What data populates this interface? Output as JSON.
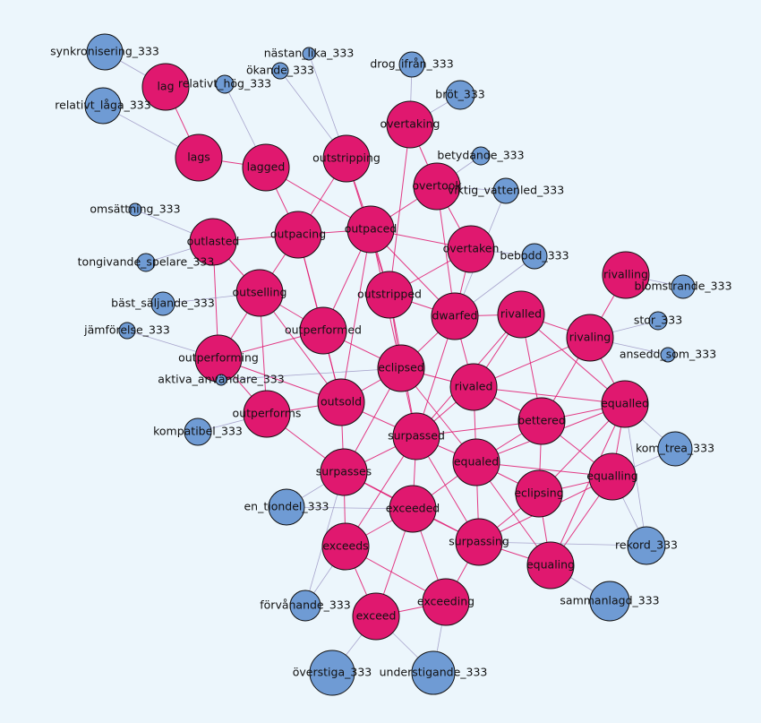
{
  "nodes": [
    {
      "label": "lag",
      "color": "#e0186f"
    },
    {
      "label": "lags",
      "color": "#e0186f"
    },
    {
      "label": "lagged",
      "color": "#e0186f"
    },
    {
      "label": "outstripping",
      "color": "#e0186f"
    },
    {
      "label": "overtaking",
      "color": "#e0186f"
    },
    {
      "label": "overtook",
      "color": "#e0186f"
    },
    {
      "label": "outpacing",
      "color": "#e0186f"
    },
    {
      "label": "outpaced",
      "color": "#e0186f"
    },
    {
      "label": "outlasted",
      "color": "#e0186f"
    },
    {
      "label": "overtaken",
      "color": "#e0186f"
    },
    {
      "label": "rivalling",
      "color": "#e0186f"
    },
    {
      "label": "outselling",
      "color": "#e0186f"
    },
    {
      "label": "outstripped",
      "color": "#e0186f"
    },
    {
      "label": "dwarfed",
      "color": "#e0186f"
    },
    {
      "label": "rivalled",
      "color": "#e0186f"
    },
    {
      "label": "rivaling",
      "color": "#e0186f"
    },
    {
      "label": "outperformed",
      "color": "#e0186f"
    },
    {
      "label": "outperforming",
      "color": "#e0186f"
    },
    {
      "label": "eclipsed",
      "color": "#e0186f"
    },
    {
      "label": "rivaled",
      "color": "#e0186f"
    },
    {
      "label": "outsold",
      "color": "#e0186f"
    },
    {
      "label": "equalled",
      "color": "#e0186f"
    },
    {
      "label": "outperforms",
      "color": "#e0186f"
    },
    {
      "label": "bettered",
      "color": "#e0186f"
    },
    {
      "label": "surpassed",
      "color": "#e0186f"
    },
    {
      "label": "equaled",
      "color": "#e0186f"
    },
    {
      "label": "surpasses",
      "color": "#e0186f"
    },
    {
      "label": "equalling",
      "color": "#e0186f"
    },
    {
      "label": "eclipsing",
      "color": "#e0186f"
    },
    {
      "label": "exceeded",
      "color": "#e0186f"
    },
    {
      "label": "exceeds",
      "color": "#e0186f"
    },
    {
      "label": "surpassing",
      "color": "#e0186f"
    },
    {
      "label": "equaling",
      "color": "#e0186f"
    },
    {
      "label": "exceed",
      "color": "#e0186f"
    },
    {
      "label": "exceeding",
      "color": "#e0186f"
    },
    {
      "label": "synkronisering_333",
      "color": "#6f9bd4"
    },
    {
      "label": "relativt_låga_333",
      "color": "#6f9bd4"
    },
    {
      "label": "relativt_hög_333",
      "color": "#6f9bd4"
    },
    {
      "label": "nästan_lika_333",
      "color": "#6f9bd4"
    },
    {
      "label": "ökande_333",
      "color": "#6f9bd4"
    },
    {
      "label": "drog_ifrån_333",
      "color": "#6f9bd4"
    },
    {
      "label": "bröt_333",
      "color": "#6f9bd4"
    },
    {
      "label": "betydande_333",
      "color": "#6f9bd4"
    },
    {
      "label": "viktig_vattenled_333",
      "color": "#6f9bd4"
    },
    {
      "label": "omsättning_333",
      "color": "#6f9bd4"
    },
    {
      "label": "tongivande_spelare_333",
      "color": "#6f9bd4"
    },
    {
      "label": "bebodd_333",
      "color": "#6f9bd4"
    },
    {
      "label": "bäst_säljande_333",
      "color": "#6f9bd4"
    },
    {
      "label": "blomstrande_333",
      "color": "#6f9bd4"
    },
    {
      "label": "jämförelse_333",
      "color": "#6f9bd4"
    },
    {
      "label": "stor_333",
      "color": "#6f9bd4"
    },
    {
      "label": "ansedd_som_333",
      "color": "#6f9bd4"
    },
    {
      "label": "aktiva_användare_333",
      "color": "#6f9bd4"
    },
    {
      "label": "kompatibel_333",
      "color": "#6f9bd4"
    },
    {
      "label": "kom_trea_333",
      "color": "#6f9bd4"
    },
    {
      "label": "en_tiondel_333",
      "color": "#6f9bd4"
    },
    {
      "label": "rekord_333",
      "color": "#6f9bd4"
    },
    {
      "label": "förvånande_333",
      "color": "#6f9bd4"
    },
    {
      "label": "sammanlagd_333",
      "color": "#6f9bd4"
    },
    {
      "label": "överstiga_333",
      "color": "#6f9bd4"
    },
    {
      "label": "understigande_333",
      "color": "#6f9bd4"
    }
  ]
}
